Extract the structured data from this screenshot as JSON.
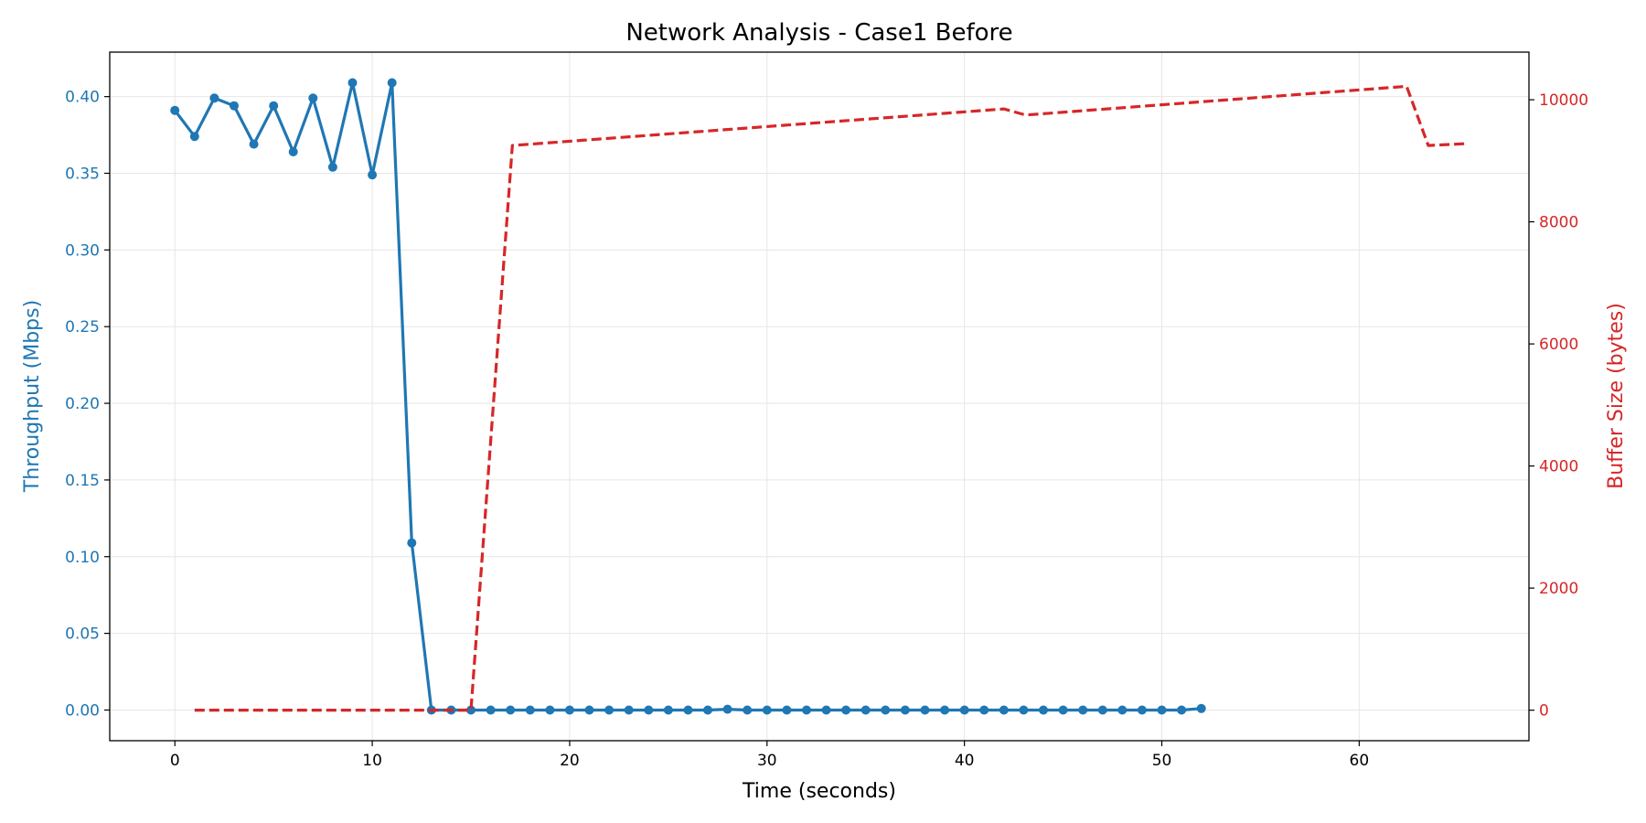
{
  "chart_data": {
    "type": "line",
    "title": "Network Analysis - Case1 Before",
    "xlabel": "Time (seconds)",
    "ylabel_left": "Throughput (Mbps)",
    "ylabel_right": "Buffer Size (bytes)",
    "xlim": [
      -3.3,
      68.6
    ],
    "ylim_left": [
      -0.02,
      0.429
    ],
    "ylim_right": [
      -500,
      10780
    ],
    "x_ticks": [
      "0",
      "10",
      "20",
      "30",
      "40",
      "50",
      "60"
    ],
    "y_left_ticks": [
      "0.00",
      "0.05",
      "0.10",
      "0.15",
      "0.20",
      "0.25",
      "0.30",
      "0.35",
      "0.40"
    ],
    "y_right_ticks": [
      "0",
      "2000",
      "4000",
      "6000",
      "8000",
      "10000"
    ],
    "grid": true,
    "colors": {
      "throughput": "#1f77b4",
      "buffer": "#d62728",
      "grid": "#e6e6e6",
      "axes": "#000000"
    },
    "series": [
      {
        "axis": "left",
        "style": "solid-markers",
        "x": [
          0,
          1,
          2,
          3,
          4,
          5,
          6,
          7,
          8,
          9,
          10,
          11,
          12,
          13,
          14,
          15,
          16,
          17,
          18,
          19,
          20,
          21,
          22,
          23,
          24,
          25,
          26,
          27,
          28,
          29,
          30,
          31,
          32,
          33,
          34,
          35,
          36,
          37,
          38,
          39,
          40,
          41,
          42,
          43,
          44,
          45,
          46,
          47,
          48,
          49,
          50,
          51,
          52
        ],
        "values": [
          0.391,
          0.374,
          0.399,
          0.394,
          0.369,
          0.394,
          0.364,
          0.399,
          0.354,
          0.409,
          0.349,
          0.409,
          0.109,
          0.0,
          0.0,
          0.0,
          0.0,
          0.0,
          0.0,
          0.0,
          0.0,
          0.0,
          0.0,
          0.0,
          0.0,
          0.0,
          0.0,
          0.0,
          0.0005,
          0.0,
          0.0,
          0.0,
          0.0,
          0.0,
          0.0,
          0.0,
          0.0,
          0.0,
          0.0,
          0.0,
          0.0,
          0.0,
          0.0,
          0.0,
          0.0,
          0.0,
          0.0,
          0.0,
          0.0,
          0.0,
          0.0,
          0.0,
          0.001
        ]
      },
      {
        "axis": "right",
        "style": "dashed",
        "x": [
          1,
          15,
          17.1,
          42,
          43.1,
          62.4,
          63.5,
          65.4
        ],
        "values": [
          0,
          0,
          9250,
          9850,
          9750,
          10220,
          9250,
          9280
        ]
      }
    ]
  }
}
